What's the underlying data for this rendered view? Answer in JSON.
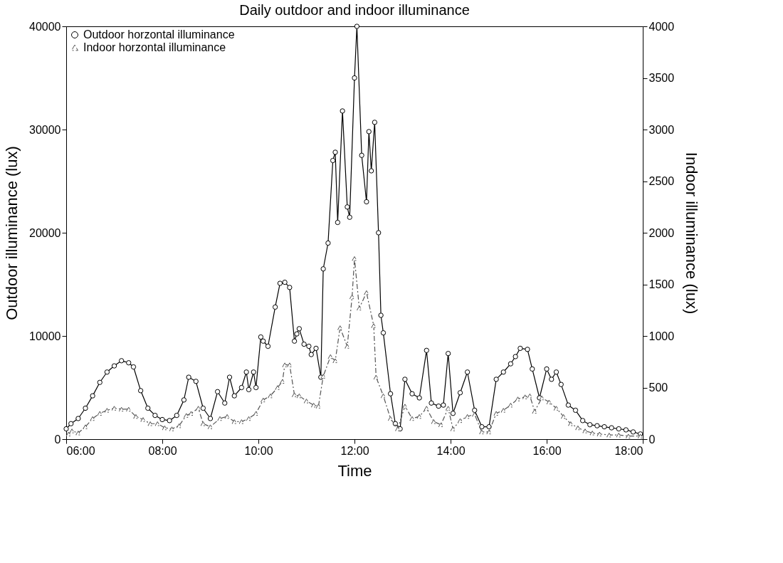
{
  "chart_data": {
    "type": "line",
    "title": "Daily outdoor and indoor illuminance",
    "xlabel": "Time",
    "ylabel": "Outdoor illuminance (lux)",
    "y2label": "Indoor illuminance (lux)",
    "xlim": [
      6,
      18
    ],
    "xticks": [
      {
        "value": 6,
        "label": "06:00"
      },
      {
        "value": 8,
        "label": "08:00"
      },
      {
        "value": 10,
        "label": "10:00"
      },
      {
        "value": 12,
        "label": "12:00"
      },
      {
        "value": 14,
        "label": "14:00"
      },
      {
        "value": 16,
        "label": "16:00"
      },
      {
        "value": 18,
        "label": "18:00"
      }
    ],
    "ylim": [
      0,
      40000
    ],
    "yticks": [
      0,
      10000,
      20000,
      30000,
      40000
    ],
    "y2lim": [
      0,
      4000
    ],
    "y2ticks": [
      0,
      500,
      1000,
      1500,
      2000,
      2500,
      3000,
      3500,
      4000
    ],
    "grid": false,
    "legend": "top left",
    "series": [
      {
        "name": "Outdoor horzontal illuminance",
        "color": "#000000",
        "marker": "circle",
        "line_style": "solid",
        "x": [
          6.0,
          6.1,
          6.25,
          6.4,
          6.55,
          6.7,
          6.85,
          7.0,
          7.15,
          7.3,
          7.4,
          7.55,
          7.7,
          7.85,
          8.0,
          8.15,
          8.3,
          8.45,
          8.55,
          8.7,
          8.85,
          9.0,
          9.15,
          9.3,
          9.4,
          9.5,
          9.65,
          9.75,
          9.8,
          9.9,
          9.95,
          10.05,
          10.1,
          10.2,
          10.35,
          10.45,
          10.55,
          10.65,
          10.75,
          10.8,
          10.85,
          10.95,
          11.05,
          11.1,
          11.2,
          11.3,
          11.35,
          11.45,
          11.55,
          11.6,
          11.65,
          11.75,
          11.85,
          11.9,
          12.0,
          12.05,
          12.15,
          12.25,
          12.3,
          12.35,
          12.42,
          12.5,
          12.55,
          12.6,
          12.75,
          12.85,
          12.95,
          13.05,
          13.2,
          13.35,
          13.5,
          13.6,
          13.75,
          13.85,
          13.95,
          14.05,
          14.2,
          14.35,
          14.5,
          14.65,
          14.8,
          14.95,
          15.1,
          15.25,
          15.35,
          15.45,
          15.6,
          15.7,
          15.85,
          16.0,
          16.1,
          16.2,
          16.3,
          16.45,
          16.6,
          16.75,
          16.9,
          17.05,
          17.2,
          17.35,
          17.5,
          17.65,
          17.8,
          17.95
        ],
        "values": [
          1000,
          1500,
          2000,
          3000,
          4200,
          5500,
          6500,
          7100,
          7600,
          7400,
          7000,
          4700,
          3000,
          2300,
          1900,
          1800,
          2300,
          3800,
          6000,
          5600,
          3000,
          2000,
          4600,
          3500,
          6000,
          4200,
          5000,
          6500,
          4800,
          6500,
          5000,
          9900,
          9500,
          9000,
          12800,
          15100,
          15200,
          14700,
          9500,
          10200,
          10700,
          9200,
          9000,
          8200,
          8800,
          6000,
          16500,
          19000,
          27000,
          27800,
          21000,
          31800,
          22500,
          21500,
          35000,
          40000,
          27500,
          23000,
          29800,
          26000,
          30700,
          20000,
          12000,
          10300,
          4400,
          1500,
          1000,
          5800,
          4400,
          4000,
          8600,
          3500,
          3200,
          3300,
          8300,
          2500,
          4500,
          6500,
          2800,
          1200,
          1200,
          5800,
          6500,
          7300,
          8000,
          8800,
          8700,
          6800,
          4000,
          6800,
          5800,
          6500,
          5300,
          3300,
          2800,
          1800,
          1400,
          1300,
          1200,
          1100,
          1000,
          900,
          700,
          500
        ]
      },
      {
        "name": "Indoor horzontal illuminance",
        "color": "#555555",
        "marker": "triangle",
        "line_style": "dashed",
        "axis": "y2",
        "x": [
          6.05,
          6.12,
          6.25,
          6.4,
          6.55,
          6.7,
          6.85,
          7.0,
          7.15,
          7.3,
          7.45,
          7.6,
          7.75,
          7.9,
          8.05,
          8.2,
          8.35,
          8.5,
          8.6,
          8.75,
          8.85,
          9.0,
          9.2,
          9.35,
          9.5,
          9.65,
          9.8,
          9.95,
          10.1,
          10.25,
          10.4,
          10.5,
          10.55,
          10.65,
          10.75,
          10.85,
          11.0,
          11.15,
          11.25,
          11.35,
          11.5,
          11.6,
          11.7,
          11.85,
          11.95,
          12.0,
          12.1,
          12.25,
          12.4,
          12.45,
          12.6,
          12.75,
          12.9,
          13.05,
          13.2,
          13.35,
          13.5,
          13.65,
          13.8,
          13.95,
          14.05,
          14.2,
          14.35,
          14.5,
          14.65,
          14.8,
          14.95,
          15.1,
          15.25,
          15.4,
          15.55,
          15.65,
          15.75,
          15.9,
          16.05,
          16.2,
          16.35,
          16.5,
          16.65,
          16.8,
          16.95,
          17.1,
          17.3,
          17.5,
          17.7,
          17.95
        ],
        "values": [
          50,
          80,
          60,
          120,
          200,
          250,
          280,
          300,
          290,
          290,
          220,
          190,
          150,
          150,
          110,
          100,
          130,
          230,
          250,
          300,
          150,
          120,
          200,
          220,
          170,
          170,
          200,
          250,
          380,
          420,
          500,
          560,
          720,
          720,
          430,
          420,
          370,
          330,
          320,
          610,
          800,
          760,
          1080,
          900,
          1380,
          1750,
          1270,
          1420,
          1100,
          600,
          420,
          200,
          100,
          320,
          200,
          220,
          300,
          170,
          140,
          300,
          100,
          180,
          220,
          240,
          70,
          70,
          250,
          280,
          330,
          390,
          410,
          420,
          270,
          400,
          360,
          300,
          220,
          150,
          110,
          80,
          60,
          50,
          40,
          40,
          30,
          30
        ]
      }
    ]
  }
}
